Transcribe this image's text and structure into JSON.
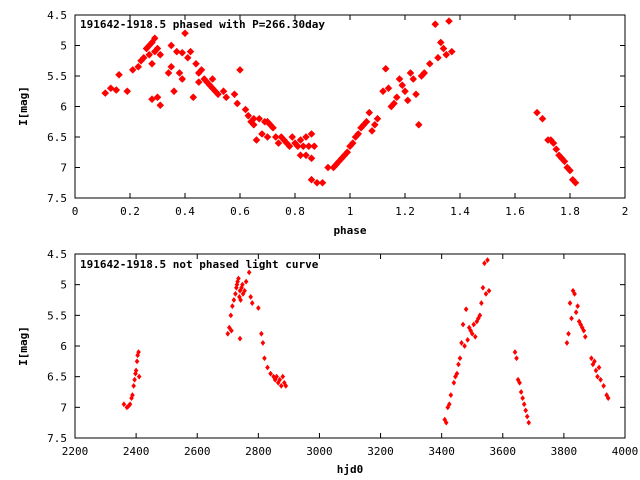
{
  "chart_data": [
    {
      "type": "scatter",
      "title": "191642-1918.5 phased with P=266.30day",
      "xlabel": "phase",
      "ylabel": "I[mag]",
      "xlim": [
        0,
        2
      ],
      "ylim": [
        7.5,
        4.5
      ],
      "y_inverted": true,
      "x_ticks": [
        "0",
        "0.2",
        "0.4",
        "0.6",
        "0.8",
        "1",
        "1.2",
        "1.4",
        "1.6",
        "1.8",
        "2"
      ],
      "y_ticks": [
        "4.5",
        "5",
        "5.5",
        "6",
        "6.5",
        "7",
        "7.5"
      ],
      "marker_color": "#ff0000",
      "series": [
        {
          "points": [
            [
              0.11,
              5.78
            ],
            [
              0.13,
              5.7
            ],
            [
              0.15,
              5.73
            ],
            [
              0.16,
              5.48
            ],
            [
              0.19,
              5.75
            ],
            [
              0.21,
              5.4
            ],
            [
              0.23,
              5.35
            ],
            [
              0.24,
              5.25
            ],
            [
              0.25,
              5.2
            ],
            [
              0.26,
              5.05
            ],
            [
              0.27,
              5.0
            ],
            [
              0.27,
              5.15
            ],
            [
              0.28,
              4.95
            ],
            [
              0.28,
              5.3
            ],
            [
              0.29,
              4.88
            ],
            [
              0.29,
              5.1
            ],
            [
              0.3,
              5.05
            ],
            [
              0.31,
              5.15
            ],
            [
              0.28,
              5.88
            ],
            [
              0.3,
              5.85
            ],
            [
              0.31,
              5.98
            ],
            [
              0.34,
              5.45
            ],
            [
              0.35,
              5.35
            ],
            [
              0.35,
              5.0
            ],
            [
              0.36,
              5.75
            ],
            [
              0.37,
              5.1
            ],
            [
              0.38,
              5.45
            ],
            [
              0.39,
              5.12
            ],
            [
              0.39,
              5.55
            ],
            [
              0.4,
              4.8
            ],
            [
              0.41,
              5.2
            ],
            [
              0.42,
              5.1
            ],
            [
              0.43,
              5.85
            ],
            [
              0.44,
              5.3
            ],
            [
              0.45,
              5.45
            ],
            [
              0.45,
              5.6
            ],
            [
              0.46,
              5.4
            ],
            [
              0.47,
              5.55
            ],
            [
              0.48,
              5.6
            ],
            [
              0.49,
              5.65
            ],
            [
              0.5,
              5.7
            ],
            [
              0.5,
              5.55
            ],
            [
              0.51,
              5.75
            ],
            [
              0.52,
              5.8
            ],
            [
              0.54,
              5.75
            ],
            [
              0.55,
              5.85
            ],
            [
              0.58,
              5.8
            ],
            [
              0.59,
              5.95
            ],
            [
              0.6,
              5.4
            ],
            [
              0.62,
              6.05
            ],
            [
              0.63,
              6.15
            ],
            [
              0.64,
              6.25
            ],
            [
              0.65,
              6.2
            ],
            [
              0.65,
              6.3
            ],
            [
              0.66,
              6.55
            ],
            [
              0.67,
              6.2
            ],
            [
              0.68,
              6.45
            ],
            [
              0.69,
              6.25
            ],
            [
              0.7,
              6.25
            ],
            [
              0.7,
              6.5
            ],
            [
              0.71,
              6.3
            ],
            [
              0.72,
              6.35
            ],
            [
              0.73,
              6.5
            ],
            [
              0.74,
              6.6
            ],
            [
              0.75,
              6.5
            ],
            [
              0.76,
              6.55
            ],
            [
              0.77,
              6.6
            ],
            [
              0.78,
              6.65
            ],
            [
              0.79,
              6.5
            ],
            [
              0.8,
              6.6
            ],
            [
              0.81,
              6.65
            ],
            [
              0.82,
              6.55
            ],
            [
              0.83,
              6.65
            ],
            [
              0.84,
              6.5
            ],
            [
              0.85,
              6.65
            ],
            [
              0.86,
              6.85
            ],
            [
              0.87,
              6.65
            ],
            [
              0.86,
              7.2
            ],
            [
              0.88,
              7.25
            ],
            [
              0.9,
              7.25
            ],
            [
              0.84,
              6.8
            ],
            [
              0.82,
              6.8
            ],
            [
              0.86,
              6.45
            ],
            [
              0.92,
              7.0
            ],
            [
              0.94,
              7.0
            ],
            [
              0.95,
              6.95
            ],
            [
              0.96,
              6.9
            ],
            [
              0.97,
              6.85
            ],
            [
              0.98,
              6.8
            ],
            [
              0.99,
              6.75
            ],
            [
              1.0,
              6.65
            ],
            [
              1.01,
              6.6
            ],
            [
              1.02,
              6.5
            ],
            [
              1.03,
              6.45
            ],
            [
              1.04,
              6.35
            ],
            [
              1.05,
              6.3
            ],
            [
              1.06,
              6.25
            ],
            [
              1.07,
              6.1
            ],
            [
              1.08,
              6.4
            ],
            [
              1.09,
              6.3
            ],
            [
              1.1,
              6.2
            ],
            [
              1.12,
              5.75
            ],
            [
              1.13,
              5.38
            ],
            [
              1.14,
              5.7
            ],
            [
              1.15,
              6.0
            ],
            [
              1.16,
              5.95
            ],
            [
              1.17,
              5.85
            ],
            [
              1.18,
              5.55
            ],
            [
              1.19,
              5.65
            ],
            [
              1.2,
              5.75
            ],
            [
              1.21,
              5.9
            ],
            [
              1.22,
              5.45
            ],
            [
              1.23,
              5.55
            ],
            [
              1.24,
              5.8
            ],
            [
              1.25,
              6.3
            ],
            [
              1.26,
              5.5
            ],
            [
              1.27,
              5.45
            ],
            [
              1.29,
              5.3
            ],
            [
              1.31,
              4.65
            ],
            [
              1.32,
              5.2
            ],
            [
              1.33,
              4.95
            ],
            [
              1.34,
              5.05
            ],
            [
              1.35,
              5.15
            ],
            [
              1.36,
              4.6
            ],
            [
              1.37,
              5.1
            ],
            [
              1.68,
              6.1
            ],
            [
              1.7,
              6.2
            ],
            [
              1.72,
              6.55
            ],
            [
              1.73,
              6.55
            ],
            [
              1.74,
              6.6
            ],
            [
              1.75,
              6.7
            ],
            [
              1.76,
              6.8
            ],
            [
              1.77,
              6.85
            ],
            [
              1.78,
              6.9
            ],
            [
              1.79,
              7.0
            ],
            [
              1.8,
              7.05
            ],
            [
              1.81,
              7.2
            ],
            [
              1.82,
              7.25
            ]
          ]
        }
      ]
    },
    {
      "type": "scatter",
      "title": "191642-1918.5 not phased light curve",
      "xlabel": "hjd0",
      "ylabel": "I[mag]",
      "xlim": [
        2200,
        4000
      ],
      "ylim": [
        7.5,
        4.5
      ],
      "y_inverted": true,
      "x_ticks": [
        "2200",
        "2400",
        "2600",
        "2800",
        "3000",
        "3200",
        "3400",
        "3600",
        "3800",
        "4000"
      ],
      "y_ticks": [
        "4.5",
        "5",
        "5.5",
        "6",
        "6.5",
        "7",
        "7.5"
      ],
      "marker_color": "#ff0000",
      "series": [
        {
          "points": [
            [
              2360,
              6.95
            ],
            [
              2370,
              7.0
            ],
            [
              2375,
              6.98
            ],
            [
              2380,
              6.95
            ],
            [
              2385,
              6.85
            ],
            [
              2388,
              6.8
            ],
            [
              2392,
              6.65
            ],
            [
              2395,
              6.55
            ],
            [
              2398,
              6.45
            ],
            [
              2400,
              6.4
            ],
            [
              2403,
              6.25
            ],
            [
              2405,
              6.15
            ],
            [
              2408,
              6.1
            ],
            [
              2410,
              6.5
            ],
            [
              2700,
              5.8
            ],
            [
              2705,
              5.7
            ],
            [
              2710,
              5.5
            ],
            [
              2712,
              5.75
            ],
            [
              2715,
              5.35
            ],
            [
              2720,
              5.25
            ],
            [
              2725,
              5.15
            ],
            [
              2728,
              5.05
            ],
            [
              2730,
              5.0
            ],
            [
              2732,
              4.95
            ],
            [
              2735,
              4.9
            ],
            [
              2738,
              5.2
            ],
            [
              2740,
              5.1
            ],
            [
              2742,
              5.25
            ],
            [
              2745,
              5.05
            ],
            [
              2748,
              5.0
            ],
            [
              2750,
              5.15
            ],
            [
              2755,
              5.1
            ],
            [
              2760,
              4.95
            ],
            [
              2770,
              4.8
            ],
            [
              2775,
              5.2
            ],
            [
              2780,
              5.3
            ],
            [
              2740,
              5.88
            ],
            [
              2800,
              5.38
            ],
            [
              2810,
              5.8
            ],
            [
              2815,
              5.95
            ],
            [
              2820,
              6.2
            ],
            [
              2830,
              6.35
            ],
            [
              2840,
              6.45
            ],
            [
              2850,
              6.5
            ],
            [
              2855,
              6.55
            ],
            [
              2860,
              6.5
            ],
            [
              2865,
              6.6
            ],
            [
              2870,
              6.55
            ],
            [
              2875,
              6.65
            ],
            [
              2880,
              6.5
            ],
            [
              2885,
              6.6
            ],
            [
              2890,
              6.65
            ],
            [
              3410,
              7.2
            ],
            [
              3415,
              7.25
            ],
            [
              3420,
              7.0
            ],
            [
              3425,
              6.95
            ],
            [
              3430,
              6.8
            ],
            [
              3440,
              6.6
            ],
            [
              3445,
              6.5
            ],
            [
              3450,
              6.45
            ],
            [
              3455,
              6.3
            ],
            [
              3460,
              6.2
            ],
            [
              3465,
              5.95
            ],
            [
              3470,
              5.65
            ],
            [
              3475,
              6.0
            ],
            [
              3480,
              5.4
            ],
            [
              3485,
              5.9
            ],
            [
              3490,
              5.7
            ],
            [
              3495,
              5.75
            ],
            [
              3500,
              5.8
            ],
            [
              3505,
              5.65
            ],
            [
              3510,
              5.85
            ],
            [
              3515,
              5.6
            ],
            [
              3520,
              5.55
            ],
            [
              3525,
              5.5
            ],
            [
              3530,
              5.3
            ],
            [
              3535,
              5.05
            ],
            [
              3540,
              4.65
            ],
            [
              3545,
              5.15
            ],
            [
              3550,
              4.6
            ],
            [
              3555,
              5.1
            ],
            [
              3640,
              6.1
            ],
            [
              3645,
              6.2
            ],
            [
              3650,
              6.55
            ],
            [
              3655,
              6.6
            ],
            [
              3660,
              6.75
            ],
            [
              3665,
              6.85
            ],
            [
              3670,
              6.95
            ],
            [
              3675,
              7.05
            ],
            [
              3680,
              7.15
            ],
            [
              3685,
              7.25
            ],
            [
              3810,
              5.95
            ],
            [
              3815,
              5.8
            ],
            [
              3820,
              5.3
            ],
            [
              3825,
              5.55
            ],
            [
              3830,
              5.1
            ],
            [
              3835,
              5.15
            ],
            [
              3840,
              5.45
            ],
            [
              3845,
              5.35
            ],
            [
              3850,
              5.6
            ],
            [
              3855,
              5.65
            ],
            [
              3860,
              5.7
            ],
            [
              3865,
              5.75
            ],
            [
              3870,
              5.85
            ],
            [
              3890,
              6.2
            ],
            [
              3895,
              6.3
            ],
            [
              3900,
              6.25
            ],
            [
              3905,
              6.4
            ],
            [
              3910,
              6.5
            ],
            [
              3915,
              6.35
            ],
            [
              3920,
              6.55
            ],
            [
              3930,
              6.65
            ],
            [
              3940,
              6.8
            ],
            [
              3945,
              6.85
            ]
          ]
        }
      ]
    }
  ]
}
